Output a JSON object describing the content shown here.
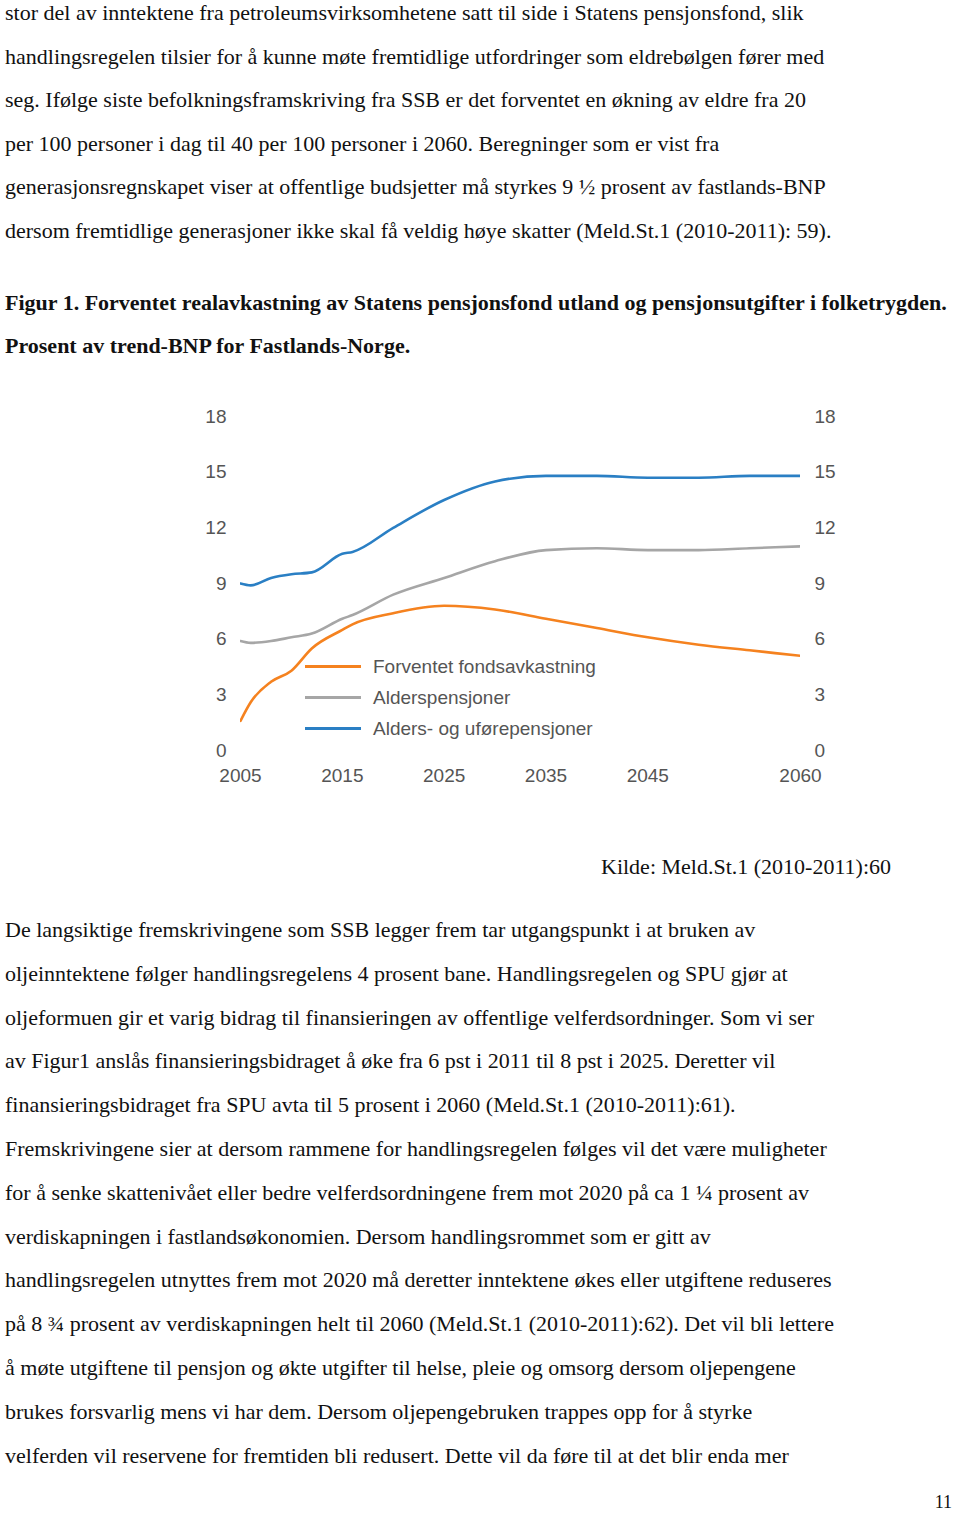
{
  "text_before": [
    "stor del av inntektene fra petroleumsvirksomhetene satt til side i Statens pensjonsfond, slik",
    "handlingsregelen tilsier for å kunne møte fremtidlige utfordringer som eldrebølgen fører med",
    "seg. Ifølge siste befolkningsframskriving fra SSB er det forventet en økning av eldre fra 20",
    "per 100 personer i dag til 40 per 100 personer i 2060. Beregninger som er vist fra",
    "generasjonsregnskapet viser at offentlige budsjetter må styrkes 9 ½ prosent av fastlands-BNP",
    "dersom fremtidlige generasjoner ikke skal få veldig høye skatter (Meld.St.1 (2010-2011): 59)."
  ],
  "figure_source": "Kilde: Meld.St.1 (2010-2011):60",
  "text_after": [
    "De langsiktige fremskrivingene som SSB legger frem tar utgangspunkt i at bruken av",
    "oljeinntektene følger handlingsregelens 4 prosent bane. Handlingsregelen og SPU gjør at",
    "oljeformuen gir et varig bidrag til finansieringen av offentlige velferdsordninger. Som vi ser",
    "av Figur1 anslås finansieringsbidraget å øke fra 6 pst i 2011 til 8 pst i 2025. Deretter vil",
    "finansieringsbidraget fra SPU avta til 5 prosent i 2060 (Meld.St.1 (2010-2011):61).",
    "Fremskrivingene sier at dersom rammene for handlingsregelen følges vil det være muligheter",
    "for å senke skattenivået eller bedre velferdsordningene frem mot 2020 på ca 1 ¼ prosent av",
    "verdiskapningen i fastlandsøkonomien. Dersom handlingsrommet som er gitt av",
    "handlingsregelen utnyttes frem mot 2020 må deretter inntektene økes eller utgiftene reduseres",
    "på 8 ¾ prosent av verdiskapningen helt til 2060 (Meld.St.1 (2010-2011):62). Det vil bli lettere",
    "å møte utgiftene til pensjon og økte utgifter til helse, pleie og omsorg dersom oljepengene",
    "brukes forsvarlig mens vi har dem. Dersom oljepengebruken trappes opp for å styrke",
    "velferden vil reservene for fremtiden bli redusert. Dette vil da føre til at det blir enda mer"
  ],
  "page_number": 11,
  "chart_data": {
    "type": "line",
    "title": "Figur 1. Forventet realavkastning av Statens pensjonsfond utland og pensjonsutgifter i folketrygden. Prosent av trend-BNP for Fastlands-Norge.",
    "x": [
      2005,
      2006,
      2008,
      2010,
      2012,
      2015,
      2016,
      2020,
      2025,
      2030,
      2035,
      2040,
      2045,
      2050,
      2055,
      2060
    ],
    "series": [
      {
        "name": "Forventet fondsavkastning",
        "color": "#f5821f",
        "values": [
          1.6,
          2.6,
          3.7,
          4.3,
          5.5,
          6.5,
          6.8,
          7.4,
          7.8,
          7.6,
          7.1,
          6.6,
          6.1,
          5.7,
          5.4,
          5.1
        ]
      },
      {
        "name": "Alderspensjoner",
        "color": "#a6a6a6",
        "values": [
          5.9,
          5.8,
          5.9,
          6.1,
          6.3,
          7.1,
          7.3,
          8.4,
          9.3,
          10.2,
          10.8,
          10.9,
          10.8,
          10.8,
          10.9,
          11.0
        ]
      },
      {
        "name": "Alders- og uførepensjoner",
        "color": "#2a7fc4",
        "values": [
          9.0,
          8.9,
          9.3,
          9.5,
          9.6,
          10.6,
          10.7,
          12.0,
          13.5,
          14.5,
          14.8,
          14.8,
          14.7,
          14.7,
          14.8,
          14.8
        ]
      }
    ],
    "xlim": [
      2005,
      2060
    ],
    "xticks": [
      2005,
      2015,
      2025,
      2035,
      2045,
      2060
    ],
    "ylim": [
      0,
      18
    ],
    "yticks": [
      0,
      3,
      6,
      9,
      12,
      15,
      18
    ],
    "grid": false,
    "legend": "bottom"
  }
}
